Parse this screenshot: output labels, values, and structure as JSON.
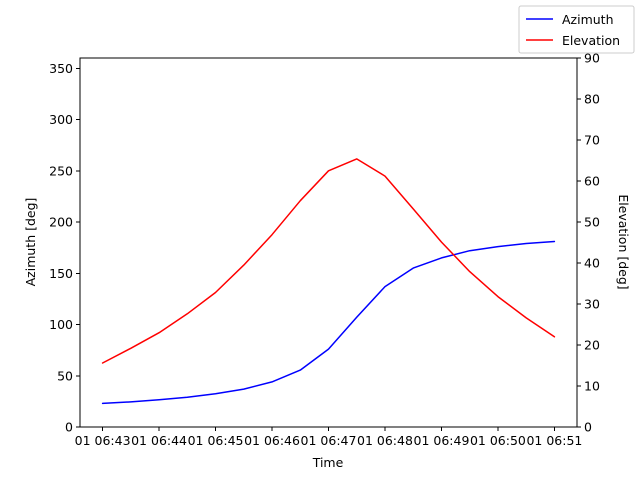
{
  "chart_data": {
    "type": "line",
    "xlabel": "Time",
    "ylabel_left": "Azimuth [deg]",
    "ylabel_right": "Elevation [deg]",
    "x_ticks": [
      "01 06:43",
      "01 06:44",
      "01 06:45",
      "01 06:46",
      "01 06:47",
      "01 06:48",
      "01 06:49",
      "01 06:50",
      "01 06:51"
    ],
    "x_range": [
      -0.4,
      8.4
    ],
    "ylim_left": [
      0,
      360
    ],
    "ylim_right": [
      0,
      90
    ],
    "y_ticks_left": [
      0,
      50,
      100,
      150,
      200,
      250,
      300,
      350
    ],
    "y_ticks_right": [
      0,
      10,
      20,
      30,
      40,
      50,
      60,
      70,
      80,
      90
    ],
    "x_points": [
      0,
      0.5,
      1,
      1.5,
      2,
      2.5,
      3,
      3.5,
      4,
      4.5,
      5,
      5.5,
      6,
      6.5,
      7,
      7.5,
      8
    ],
    "grid": false,
    "legend_position": "top-right",
    "series": [
      {
        "name": "Azimuth",
        "axis": "left",
        "color": "#0000ff",
        "values": [
          23,
          24.5,
          26.5,
          29,
          32.5,
          37,
          44,
          55.5,
          76,
          107,
          137,
          155,
          165,
          172,
          176,
          179,
          181
        ]
      },
      {
        "name": "Elevation",
        "axis": "right",
        "color": "#ff0000",
        "values": [
          15.6,
          19.2,
          23,
          27.6,
          32.8,
          39.5,
          46.9,
          55.2,
          62.5,
          65.4,
          61.2,
          53.2,
          45.1,
          37.9,
          31.8,
          26.6,
          22
        ]
      }
    ]
  }
}
